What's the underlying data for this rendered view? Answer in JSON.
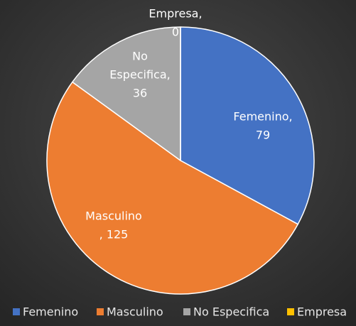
{
  "chart_data": {
    "type": "pie",
    "categories": [
      "Femenino",
      "Masculino",
      "No Especifica",
      "Empresa"
    ],
    "values": [
      79,
      125,
      36,
      0
    ],
    "value_labels": [
      [
        "Femenino,",
        "79"
      ],
      [
        "Masculino",
        ", 125"
      ],
      [
        "No",
        "Especifica,",
        "36"
      ],
      [
        "Empresa,",
        "0"
      ]
    ],
    "colors": [
      "#4472c4",
      "#ed7d31",
      "#a5a5a5",
      "#ffc000"
    ],
    "legend": "bottom"
  }
}
